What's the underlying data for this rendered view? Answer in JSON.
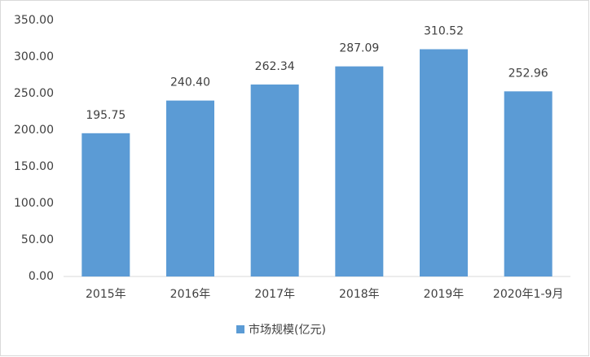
{
  "chart_data": {
    "type": "bar",
    "categories": [
      "2015年",
      "2016年",
      "2017年",
      "2018年",
      "2019年",
      "2020年1-9月"
    ],
    "series": [
      {
        "name": "市场规模(亿元)",
        "color": "#5b9bd5",
        "values": [
          195.75,
          240.4,
          262.34,
          287.09,
          310.52,
          252.96
        ],
        "value_labels": [
          "195.75",
          "240.40",
          "262.34",
          "287.09",
          "310.52",
          "252.96"
        ]
      }
    ],
    "ylim": [
      0,
      350
    ],
    "yticks": [
      {
        "value": 0,
        "label": "0.00"
      },
      {
        "value": 50,
        "label": "50.00"
      },
      {
        "value": 100,
        "label": "100.00"
      },
      {
        "value": 150,
        "label": "150.00"
      },
      {
        "value": 200,
        "label": "200.00"
      },
      {
        "value": 250,
        "label": "250.00"
      },
      {
        "value": 300,
        "label": "300.00"
      },
      {
        "value": 350,
        "label": "350.00"
      }
    ],
    "grid": false,
    "legend": "bottom"
  }
}
